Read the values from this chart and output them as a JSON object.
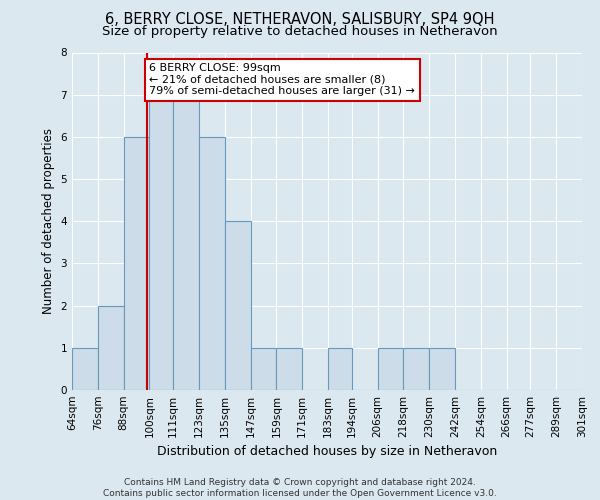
{
  "title": "6, BERRY CLOSE, NETHERAVON, SALISBURY, SP4 9QH",
  "subtitle": "Size of property relative to detached houses in Netheravon",
  "xlabel": "Distribution of detached houses by size in Netheravon",
  "ylabel": "Number of detached properties",
  "bin_edges": [
    64,
    76,
    88,
    100,
    111,
    123,
    135,
    147,
    159,
    171,
    183,
    194,
    206,
    218,
    230,
    242,
    254,
    266,
    277,
    289,
    301
  ],
  "bin_labels": [
    "64sqm",
    "76sqm",
    "88sqm",
    "100sqm",
    "111sqm",
    "123sqm",
    "135sqm",
    "147sqm",
    "159sqm",
    "171sqm",
    "183sqm",
    "194sqm",
    "206sqm",
    "218sqm",
    "230sqm",
    "242sqm",
    "254sqm",
    "266sqm",
    "277sqm",
    "289sqm",
    "301sqm"
  ],
  "bar_heights": [
    1,
    2,
    6,
    7,
    7,
    6,
    4,
    1,
    1,
    0,
    1,
    0,
    1,
    1,
    1,
    0,
    0,
    0,
    0,
    0
  ],
  "bar_color": "#ccdce8",
  "bar_edge_color": "#6699bb",
  "ref_line_x": 99,
  "ref_line_color": "#cc0000",
  "annotation_line1": "6 BERRY CLOSE: 99sqm",
  "annotation_line2": "← 21% of detached houses are smaller (8)",
  "annotation_line3": "79% of semi-detached houses are larger (31) →",
  "annotation_box_color": "#ffffff",
  "annotation_box_edge": "#cc0000",
  "ylim": [
    0,
    8
  ],
  "yticks": [
    0,
    1,
    2,
    3,
    4,
    5,
    6,
    7,
    8
  ],
  "bg_color": "#dce8f0",
  "plot_bg_color": "#dce8f0",
  "grid_color": "#ffffff",
  "footer": "Contains HM Land Registry data © Crown copyright and database right 2024.\nContains public sector information licensed under the Open Government Licence v3.0.",
  "title_fontsize": 10.5,
  "subtitle_fontsize": 9.5,
  "ylabel_fontsize": 8.5,
  "xlabel_fontsize": 9,
  "tick_fontsize": 7.5,
  "footer_fontsize": 6.5,
  "annotation_fontsize": 8
}
